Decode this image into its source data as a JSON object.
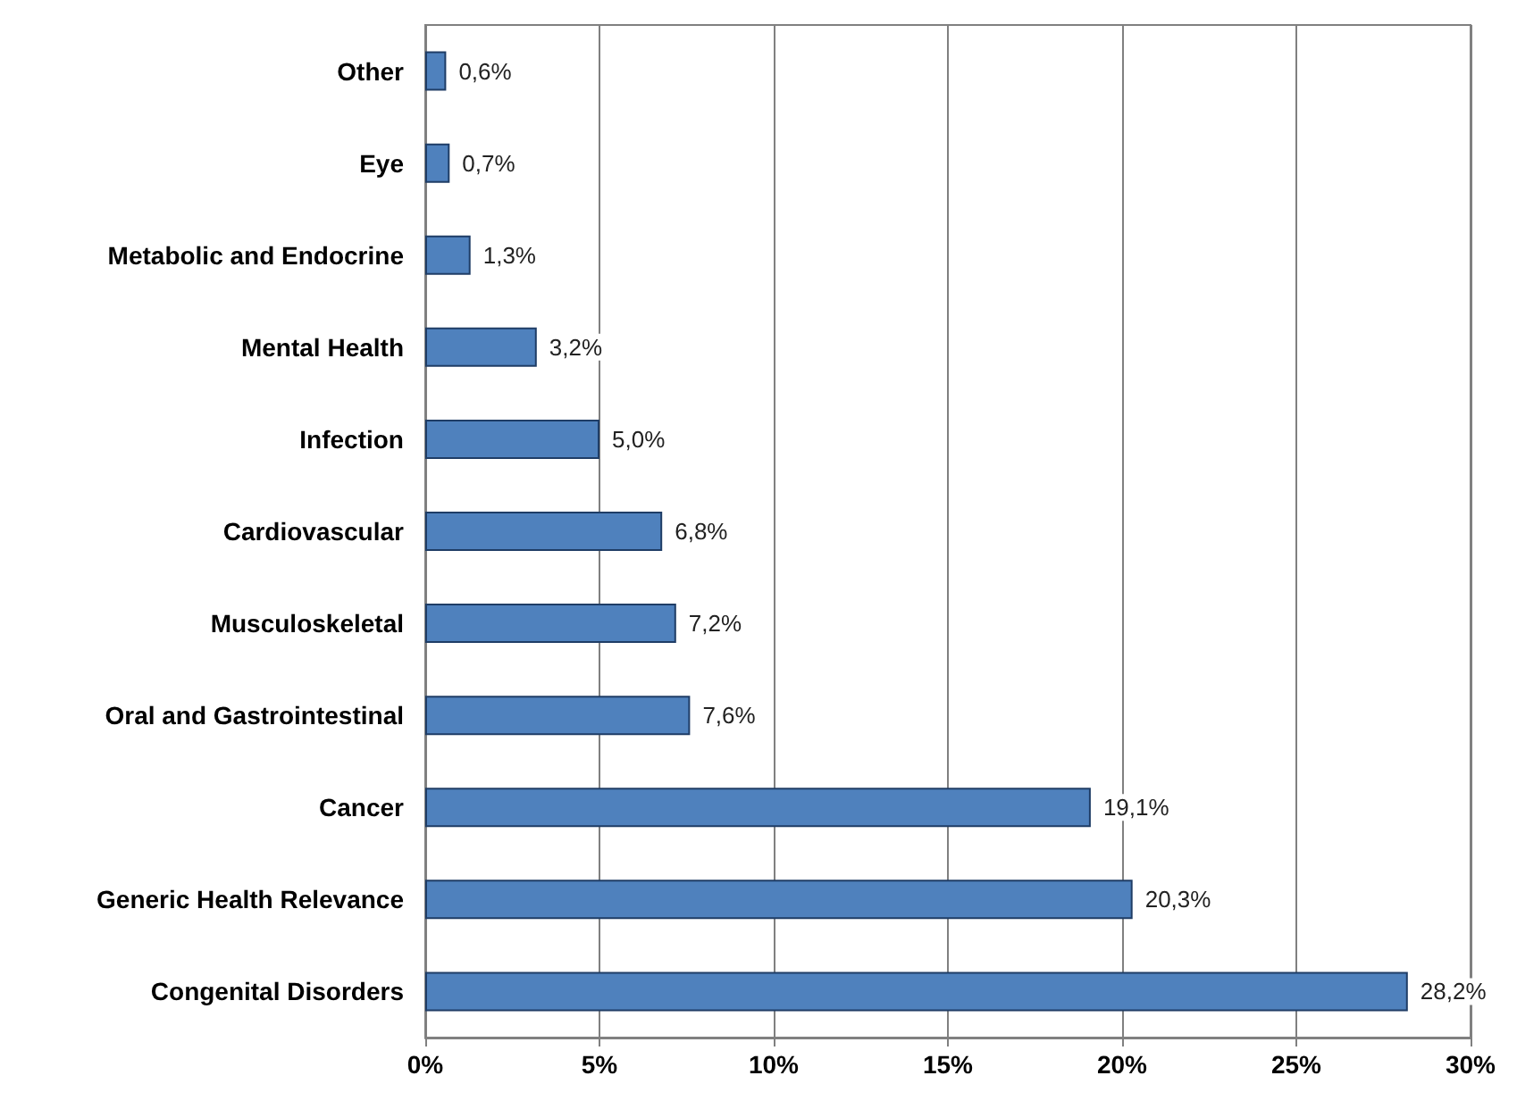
{
  "chart_data": {
    "type": "bar",
    "orientation": "horizontal",
    "categories": [
      "Other",
      "Eye",
      "Metabolic and Endocrine",
      "Mental Health",
      "Infection",
      "Cardiovascular",
      "Musculoskeletal",
      "Oral and Gastrointestinal",
      "Cancer",
      "Generic Health Relevance",
      "Congenital Disorders"
    ],
    "values": [
      0.6,
      0.7,
      1.3,
      3.2,
      5.0,
      6.8,
      7.2,
      7.6,
      19.1,
      20.3,
      28.2
    ],
    "value_labels": [
      "0,6%",
      "0,7%",
      "1,3%",
      "3,2%",
      "5,0%",
      "6,8%",
      "7,2%",
      "7,6%",
      "19,1%",
      "20,3%",
      "28,2%"
    ],
    "color": "#4f81bd",
    "xlim": [
      0,
      30
    ],
    "xticks": [
      {
        "value": 0,
        "label": "0%"
      },
      {
        "value": 5,
        "label": "5%"
      },
      {
        "value": 10,
        "label": "10%"
      },
      {
        "value": 15,
        "label": "15%"
      },
      {
        "value": 20,
        "label": "20%"
      },
      {
        "value": 25,
        "label": "25%"
      },
      {
        "value": 30,
        "label": "30%"
      }
    ],
    "grid": "x"
  }
}
